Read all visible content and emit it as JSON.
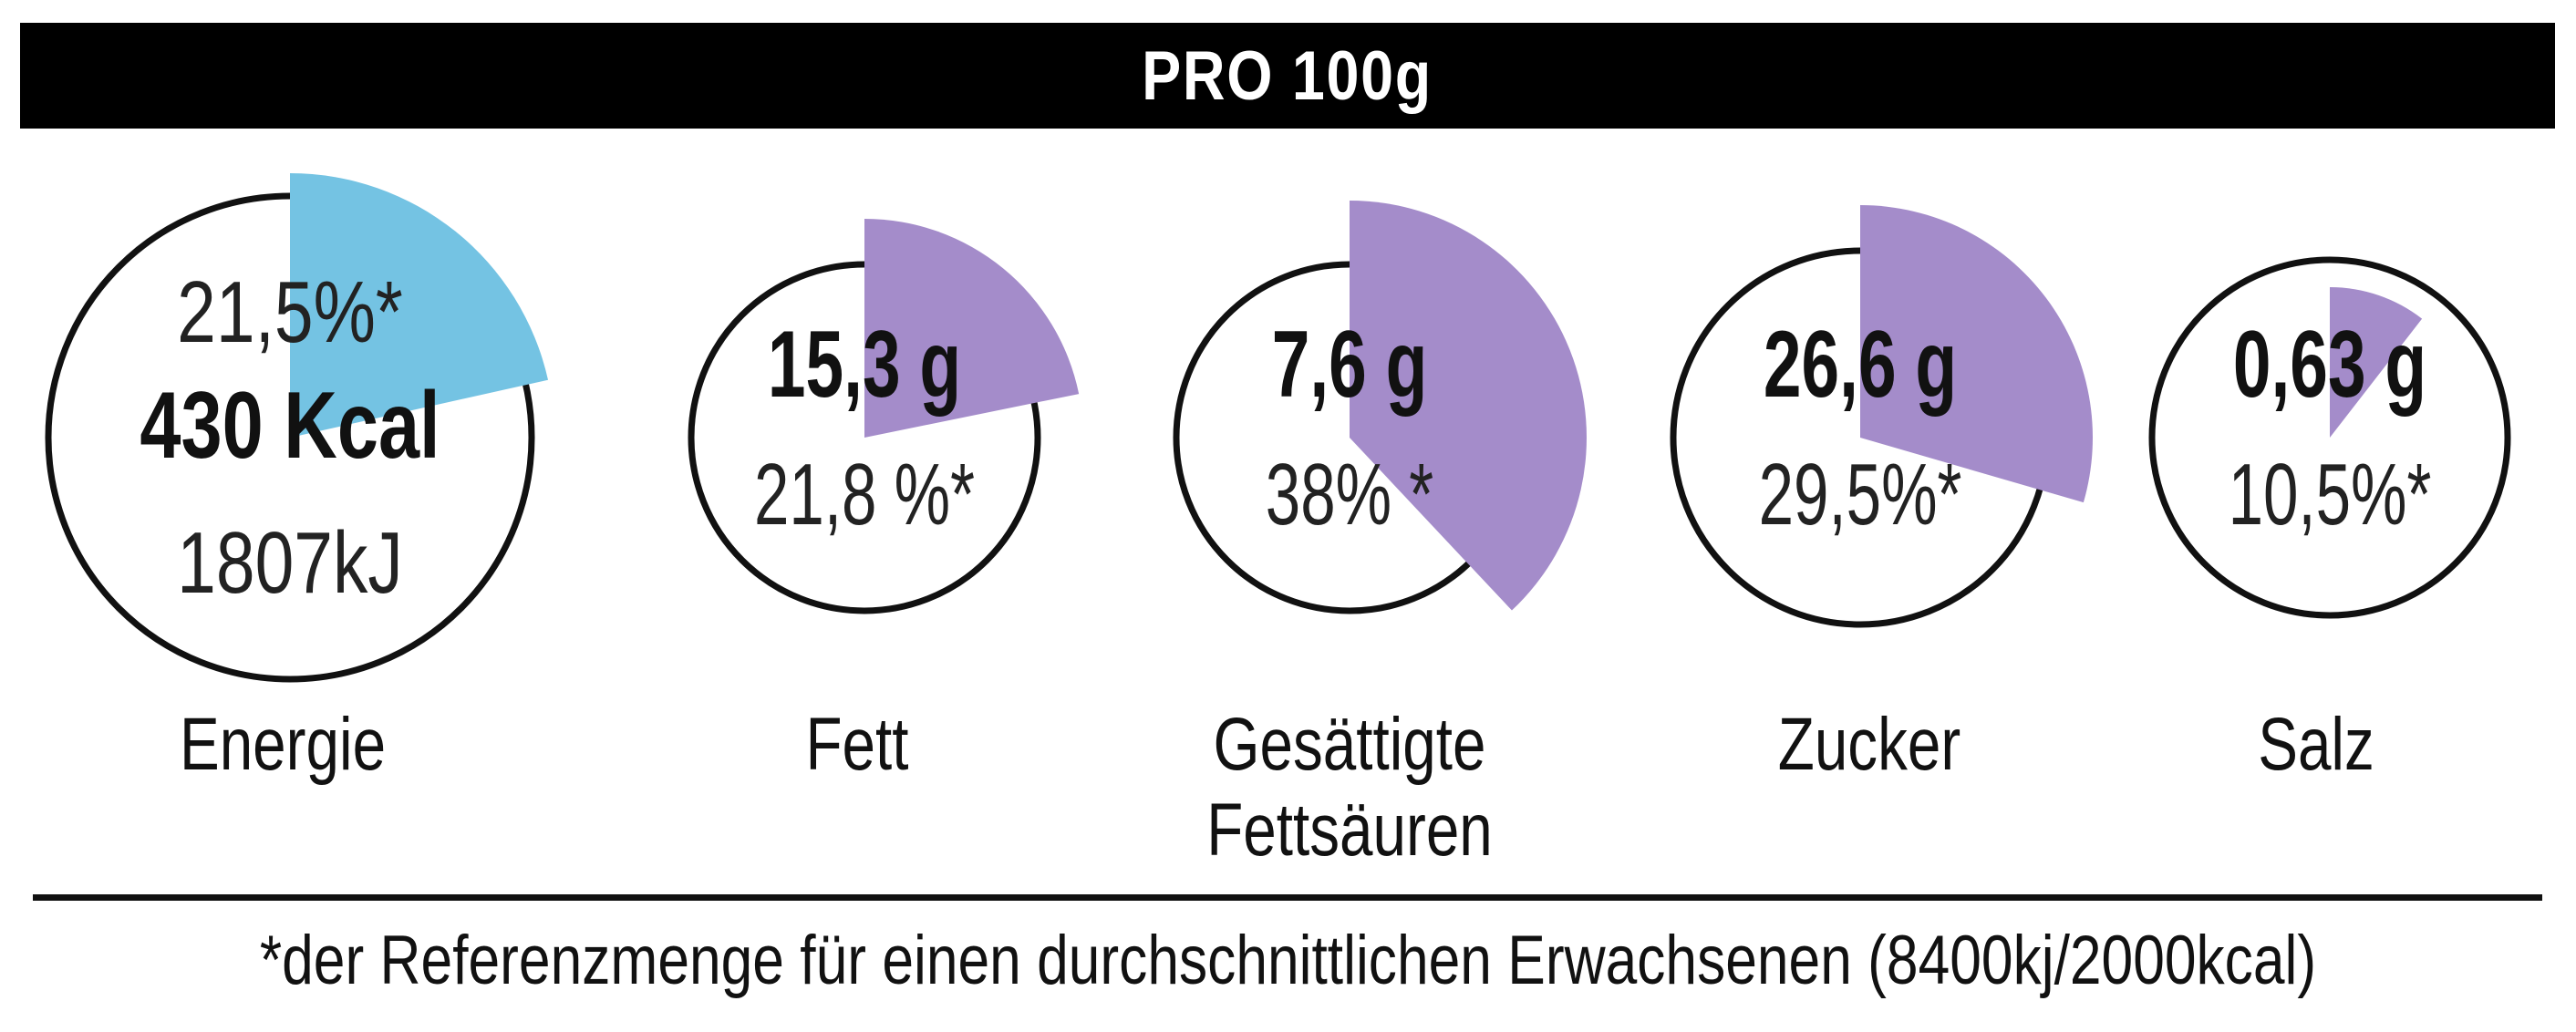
{
  "header": {
    "title": "PRO 100g"
  },
  "colors": {
    "energy": "#74c3e3",
    "nutrient": "#a48cca",
    "ring": "#111111"
  },
  "chart_data": {
    "type": "pie",
    "title": "PRO 100g",
    "items": [
      {
        "name": "energie",
        "label": "Energie",
        "label2": "",
        "value_bold": "430 Kcal",
        "percent_text": "21,5%*",
        "extra_text": "1807kJ",
        "percent": 21.5,
        "kind": "energy"
      },
      {
        "name": "fett",
        "label": "Fett",
        "label2": "",
        "value_bold": "15,3 g",
        "percent_text": "21,8 %*",
        "extra_text": "",
        "percent": 21.8,
        "kind": "nutrient"
      },
      {
        "name": "gesaettigte-fettsaeuren",
        "label": "Gesättigte",
        "label2": "Fettsäuren",
        "value_bold": "7,6 g",
        "percent_text": "38% *",
        "extra_text": "",
        "percent": 38,
        "kind": "nutrient"
      },
      {
        "name": "zucker",
        "label": "Zucker",
        "label2": "",
        "value_bold": "26,6 g",
        "percent_text": "29,5%*",
        "extra_text": "",
        "percent": 29.5,
        "kind": "nutrient"
      },
      {
        "name": "salz",
        "label": "Salz",
        "label2": "",
        "value_bold": "0,63 g",
        "percent_text": "10,5%*",
        "extra_text": "",
        "percent": 10.5,
        "kind": "nutrient"
      }
    ]
  },
  "footnote": "*der Referenzmenge für einen durchschnittlichen Erwachsenen (8400kj/2000kcal)"
}
